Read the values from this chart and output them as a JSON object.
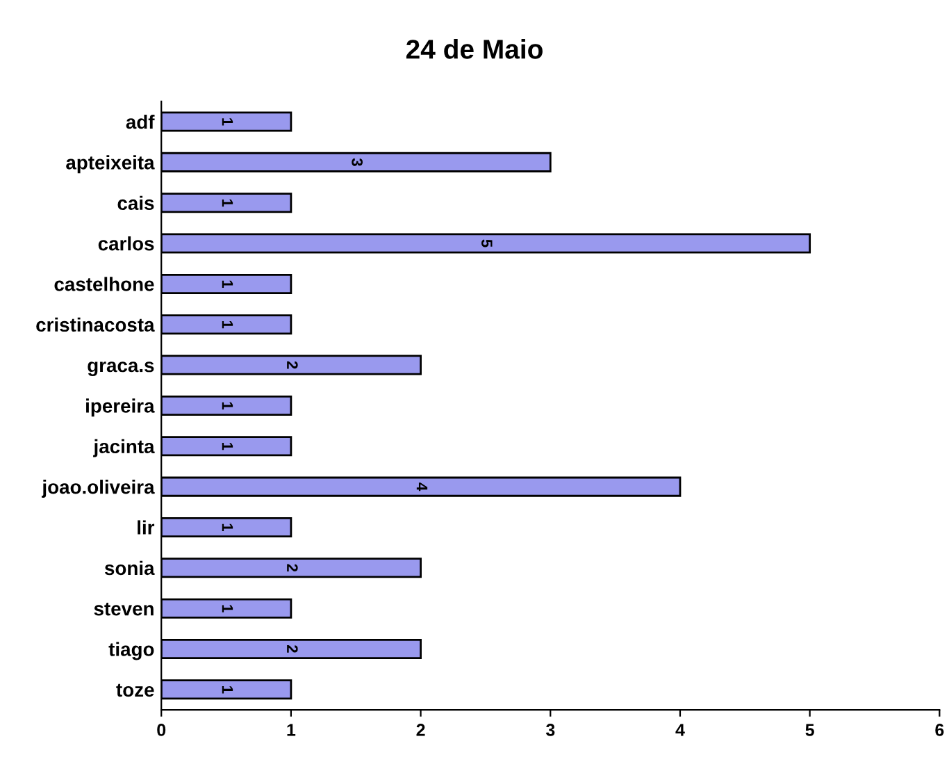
{
  "chart_data": {
    "type": "bar",
    "orientation": "horizontal",
    "title": "24 de Maio",
    "categories": [
      "adf",
      "apteixeita",
      "cais",
      "carlos",
      "castelhone",
      "cristinacosta",
      "graca.s",
      "ipereira",
      "jacinta",
      "joao.oliveira",
      "lir",
      "sonia",
      "steven",
      "tiago",
      "toze"
    ],
    "values": [
      1,
      3,
      1,
      5,
      1,
      1,
      2,
      1,
      1,
      4,
      1,
      2,
      1,
      2,
      1
    ],
    "color": "#9999ee",
    "xlim": [
      0,
      6
    ],
    "xticks": [
      0,
      1,
      2,
      3,
      4,
      5,
      6
    ],
    "grid": false,
    "data_labels": true
  }
}
